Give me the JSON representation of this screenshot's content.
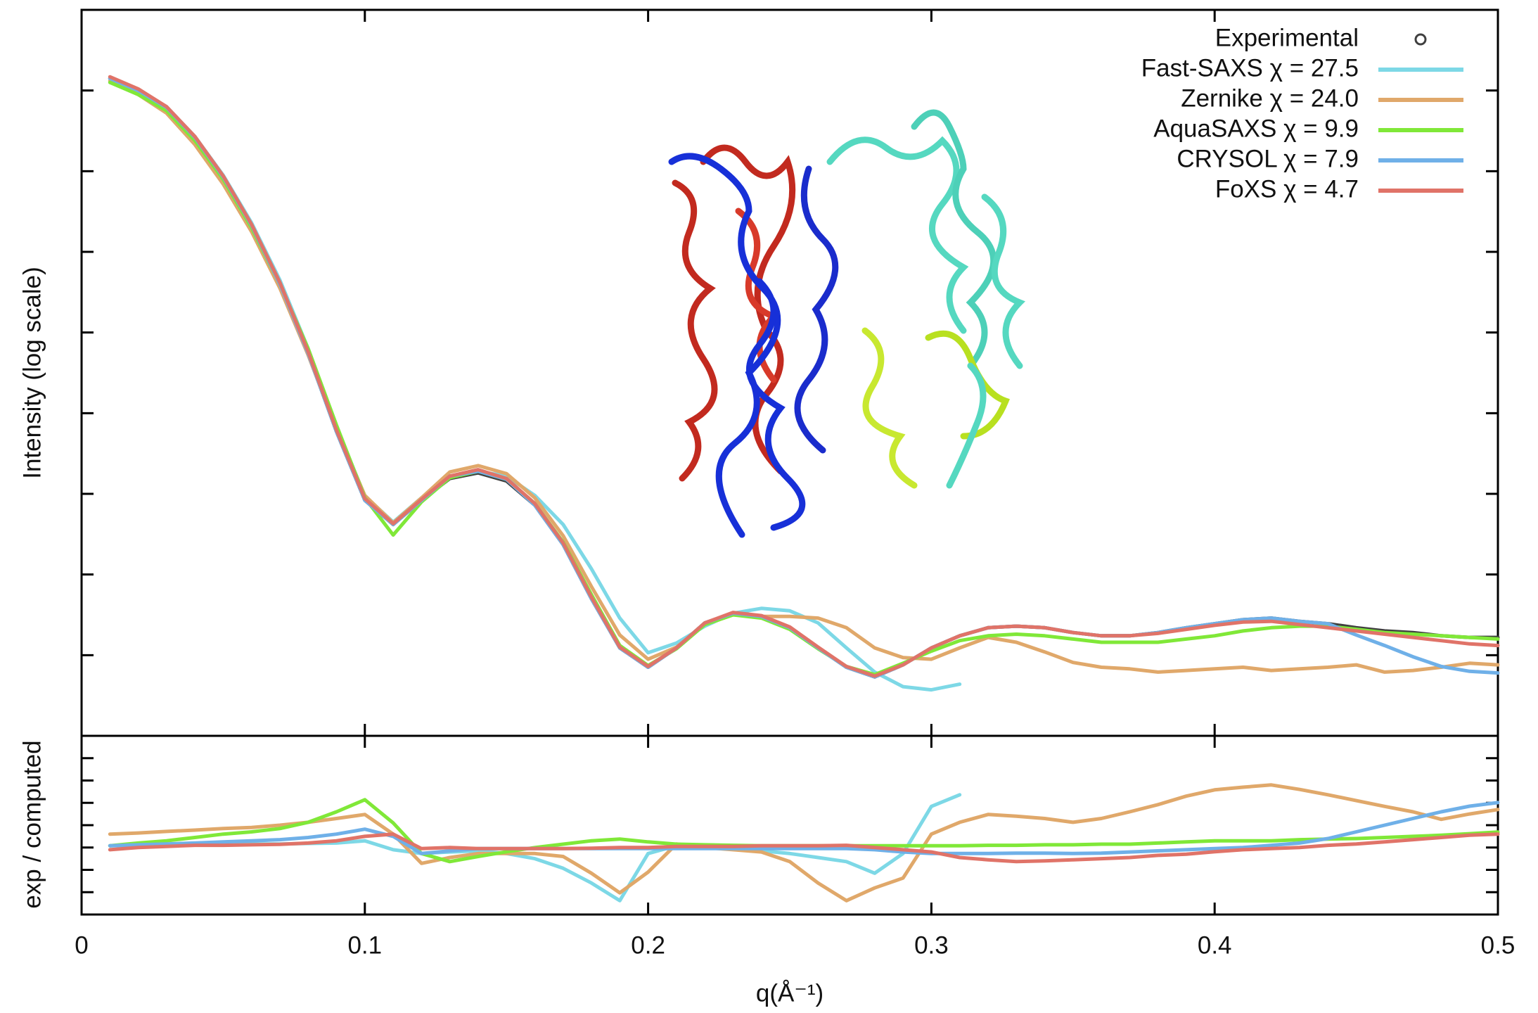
{
  "chart_data": [
    {
      "type": "line",
      "ylabel": "Intensity (log scale)",
      "legend": "upper right",
      "x": [
        0.01,
        0.02,
        0.03,
        0.04,
        0.05,
        0.06,
        0.07,
        0.08,
        0.09,
        0.1,
        0.11,
        0.12,
        0.13,
        0.14,
        0.15,
        0.16,
        0.17,
        0.18,
        0.19,
        0.2,
        0.21,
        0.22,
        0.23,
        0.24,
        0.25,
        0.26,
        0.27,
        0.28,
        0.29,
        0.3,
        0.31,
        0.32,
        0.33,
        0.34,
        0.35,
        0.36,
        0.37,
        0.38,
        0.39,
        0.4,
        0.41,
        0.42,
        0.43,
        0.44,
        0.45,
        0.46,
        0.47,
        0.48,
        0.49,
        0.5
      ],
      "xlim": [
        0,
        0.5
      ],
      "ylim": [
        0,
        9
      ],
      "yticks": [
        1,
        2,
        3,
        4,
        5,
        6,
        7,
        8
      ],
      "series": [
        {
          "name": "Experimental",
          "color": "#404040",
          "marker": "circle",
          "values": [
            8.15,
            8.0,
            7.79,
            7.42,
            6.93,
            6.33,
            5.6,
            4.74,
            3.77,
            2.92,
            2.62,
            2.92,
            3.19,
            3.26,
            3.16,
            2.86,
            2.37,
            1.7,
            1.09,
            0.85,
            1.09,
            1.4,
            1.52,
            1.48,
            1.34,
            1.09,
            0.85,
            0.73,
            0.88,
            1.09,
            1.24,
            1.34,
            1.36,
            1.34,
            1.28,
            1.24,
            1.24,
            1.28,
            1.34,
            1.39,
            1.44,
            1.46,
            1.42,
            1.39,
            1.34,
            1.3,
            1.28,
            1.24,
            1.22,
            1.22
          ]
        },
        {
          "name": "Fast-SAXS χ = 27.5",
          "color": "#7dd8e6",
          "values": [
            8.15,
            8.0,
            7.8,
            7.43,
            6.95,
            6.36,
            5.65,
            4.8,
            3.83,
            2.97,
            2.65,
            2.95,
            3.22,
            3.28,
            3.22,
            2.98,
            2.62,
            2.07,
            1.46,
            1.03,
            1.15,
            1.36,
            1.52,
            1.58,
            1.55,
            1.4,
            1.09,
            0.79,
            0.61,
            0.57,
            0.64,
            null,
            null,
            null,
            null,
            null,
            null,
            null,
            null,
            null,
            null,
            null,
            null,
            null,
            null,
            null,
            null,
            null,
            null,
            null
          ]
        },
        {
          "name": "Zernike χ = 24.0",
          "color": "#e0a86a",
          "values": [
            8.12,
            7.95,
            7.72,
            7.33,
            6.84,
            6.25,
            5.55,
            4.72,
            3.8,
            2.98,
            2.64,
            2.95,
            3.27,
            3.35,
            3.25,
            2.95,
            2.48,
            1.85,
            1.25,
            0.95,
            1.1,
            1.38,
            1.5,
            1.48,
            1.48,
            1.46,
            1.34,
            1.09,
            0.97,
            0.95,
            1.09,
            1.22,
            1.16,
            1.04,
            0.91,
            0.85,
            0.83,
            0.79,
            0.81,
            0.83,
            0.85,
            0.81,
            0.83,
            0.85,
            0.88,
            0.79,
            0.81,
            0.85,
            0.9,
            0.88
          ]
        },
        {
          "name": "AquaSAXS χ = 9.9",
          "color": "#80e838",
          "values": [
            8.1,
            7.95,
            7.75,
            7.38,
            6.9,
            6.3,
            5.6,
            4.8,
            3.85,
            2.95,
            2.49,
            2.9,
            3.2,
            3.28,
            3.18,
            2.88,
            2.4,
            1.75,
            1.12,
            0.87,
            1.08,
            1.38,
            1.5,
            1.46,
            1.32,
            1.08,
            0.86,
            0.76,
            0.9,
            1.05,
            1.18,
            1.24,
            1.26,
            1.24,
            1.2,
            1.16,
            1.16,
            1.16,
            1.2,
            1.24,
            1.3,
            1.34,
            1.36,
            1.36,
            1.32,
            1.28,
            1.26,
            1.24,
            1.22,
            1.2
          ]
        },
        {
          "name": "CRYSOL χ = 7.9",
          "color": "#6fb0e8",
          "values": [
            8.15,
            8.0,
            7.79,
            7.42,
            6.93,
            6.33,
            5.6,
            4.74,
            3.77,
            2.92,
            2.62,
            2.92,
            3.22,
            3.28,
            3.18,
            2.86,
            2.37,
            1.7,
            1.09,
            0.85,
            1.09,
            1.4,
            1.52,
            1.48,
            1.34,
            1.09,
            0.85,
            0.73,
            0.88,
            1.09,
            1.24,
            1.34,
            1.36,
            1.34,
            1.28,
            1.24,
            1.24,
            1.28,
            1.34,
            1.39,
            1.44,
            1.46,
            1.42,
            1.39,
            1.25,
            1.12,
            0.98,
            0.86,
            0.8,
            0.78
          ]
        },
        {
          "name": "FoXS χ = 4.7",
          "color": "#e07368",
          "values": [
            8.17,
            8.02,
            7.8,
            7.43,
            6.94,
            6.34,
            5.62,
            4.76,
            3.79,
            2.94,
            2.63,
            2.93,
            3.22,
            3.3,
            3.19,
            2.88,
            2.39,
            1.72,
            1.1,
            0.86,
            1.09,
            1.4,
            1.53,
            1.49,
            1.35,
            1.1,
            0.86,
            0.74,
            0.88,
            1.09,
            1.24,
            1.34,
            1.36,
            1.34,
            1.28,
            1.24,
            1.24,
            1.27,
            1.32,
            1.37,
            1.41,
            1.42,
            1.38,
            1.34,
            1.3,
            1.26,
            1.22,
            1.18,
            1.14,
            1.12
          ]
        }
      ]
    },
    {
      "type": "line",
      "ylabel": "exp / computed",
      "xlabel": "q(Å⁻¹)",
      "x": [
        0.01,
        0.02,
        0.03,
        0.04,
        0.05,
        0.06,
        0.07,
        0.08,
        0.09,
        0.1,
        0.11,
        0.12,
        0.13,
        0.14,
        0.15,
        0.16,
        0.17,
        0.18,
        0.19,
        0.2,
        0.21,
        0.22,
        0.23,
        0.24,
        0.25,
        0.26,
        0.27,
        0.28,
        0.29,
        0.3,
        0.31,
        0.32,
        0.33,
        0.34,
        0.35,
        0.36,
        0.37,
        0.38,
        0.39,
        0.4,
        0.41,
        0.42,
        0.43,
        0.44,
        0.45,
        0.46,
        0.47,
        0.48,
        0.49,
        0.5
      ],
      "xlim": [
        0,
        0.5
      ],
      "xticks": [
        0,
        0.1,
        0.2,
        0.3,
        0.4,
        0.5
      ],
      "ylim": [
        0,
        8
      ],
      "yticks": [
        1,
        2,
        3,
        4,
        5,
        6,
        7
      ],
      "series": [
        {
          "color": "#7dd8e6",
          "values": [
            3.08,
            3.1,
            3.12,
            3.14,
            3.16,
            3.16,
            3.16,
            3.18,
            3.2,
            3.3,
            2.9,
            2.73,
            2.8,
            2.85,
            2.73,
            2.5,
            2.07,
            1.41,
            0.62,
            2.73,
            3.08,
            3.0,
            2.95,
            2.85,
            2.73,
            2.55,
            2.37,
            1.85,
            2.73,
            4.84,
            5.36,
            null,
            null,
            null,
            null,
            null,
            null,
            null,
            null,
            null,
            null,
            null,
            null,
            null,
            null,
            null,
            null,
            null,
            null,
            null
          ]
        },
        {
          "color": "#e0a86a",
          "values": [
            3.6,
            3.65,
            3.72,
            3.78,
            3.85,
            3.9,
            4.0,
            4.13,
            4.3,
            4.48,
            3.6,
            2.29,
            2.55,
            2.73,
            2.73,
            2.73,
            2.6,
            1.85,
            0.97,
            1.9,
            3.16,
            3.0,
            2.9,
            2.8,
            2.37,
            1.41,
            0.62,
            1.19,
            1.63,
            3.6,
            4.13,
            4.48,
            4.4,
            4.3,
            4.13,
            4.3,
            4.6,
            4.92,
            5.3,
            5.58,
            5.7,
            5.8,
            5.6,
            5.36,
            5.1,
            4.84,
            4.6,
            4.26,
            4.5,
            4.7
          ]
        },
        {
          "color": "#80e838",
          "values": [
            3.08,
            3.2,
            3.3,
            3.45,
            3.6,
            3.7,
            3.85,
            4.13,
            4.6,
            5.14,
            4.1,
            2.73,
            2.37,
            2.6,
            2.81,
            3.0,
            3.15,
            3.3,
            3.38,
            3.25,
            3.15,
            3.12,
            3.1,
            3.08,
            3.08,
            3.08,
            3.08,
            3.08,
            3.08,
            3.08,
            3.08,
            3.1,
            3.1,
            3.12,
            3.12,
            3.15,
            3.15,
            3.2,
            3.25,
            3.3,
            3.3,
            3.3,
            3.35,
            3.38,
            3.4,
            3.45,
            3.5,
            3.55,
            3.62,
            3.69
          ]
        },
        {
          "color": "#6fb0e8",
          "values": [
            3.08,
            3.12,
            3.16,
            3.2,
            3.25,
            3.3,
            3.35,
            3.45,
            3.6,
            3.82,
            3.5,
            2.73,
            2.85,
            2.95,
            2.95,
            2.95,
            2.95,
            2.95,
            2.95,
            2.95,
            2.95,
            2.95,
            2.95,
            2.95,
            2.95,
            2.95,
            2.95,
            2.9,
            2.8,
            2.73,
            2.73,
            2.73,
            2.75,
            2.75,
            2.73,
            2.75,
            2.8,
            2.85,
            2.9,
            2.95,
            3.0,
            3.1,
            3.2,
            3.4,
            3.7,
            4.0,
            4.3,
            4.6,
            4.85,
            5.01
          ]
        },
        {
          "color": "#e07368",
          "values": [
            2.9,
            3.0,
            3.05,
            3.1,
            3.1,
            3.12,
            3.14,
            3.2,
            3.3,
            3.5,
            3.6,
            2.95,
            3.0,
            2.95,
            2.95,
            2.95,
            2.95,
            2.97,
            3.0,
            3.0,
            3.05,
            3.05,
            3.05,
            3.08,
            3.08,
            3.08,
            3.1,
            3.0,
            2.9,
            2.8,
            2.55,
            2.45,
            2.37,
            2.4,
            2.45,
            2.5,
            2.55,
            2.65,
            2.7,
            2.81,
            2.9,
            2.95,
            3.0,
            3.1,
            3.16,
            3.25,
            3.35,
            3.45,
            3.55,
            3.6
          ]
        }
      ]
    }
  ]
}
